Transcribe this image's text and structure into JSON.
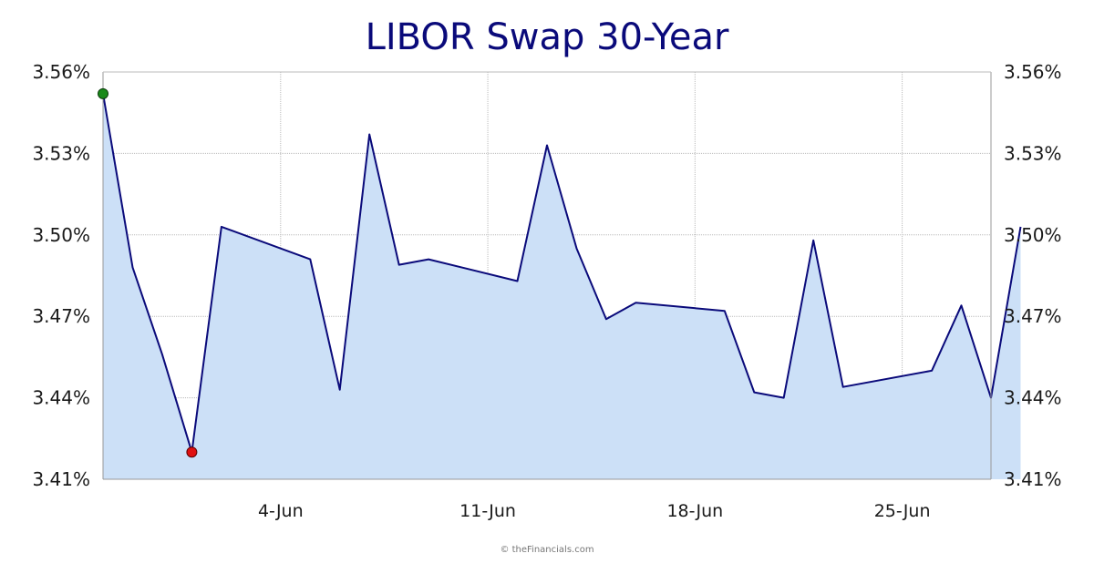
{
  "chart_data": {
    "type": "area",
    "title": "LIBOR Swap 30-Year",
    "xlabel": "",
    "ylabel": "",
    "ylim": [
      3.41,
      3.56
    ],
    "y_ticks": [
      3.41,
      3.44,
      3.47,
      3.5,
      3.53,
      3.56
    ],
    "y_tick_labels": [
      "3.41%",
      "3.44%",
      "3.47%",
      "3.50%",
      "3.53%",
      "3.56%"
    ],
    "xlim": [
      "2018-05-29",
      "2018-06-28"
    ],
    "x_ticks": [
      "2018-06-04",
      "2018-06-11",
      "2018-06-18",
      "2018-06-25"
    ],
    "x_tick_labels": [
      "4-Jun",
      "11-Jun",
      "18-Jun",
      "25-Jun"
    ],
    "grid": true,
    "dual_y_axis": true,
    "series": [
      {
        "x": [
          "2018-05-29",
          "2018-05-30",
          "2018-05-31",
          "2018-06-01",
          "2018-06-02",
          "2018-06-05",
          "2018-06-06",
          "2018-06-07",
          "2018-06-08",
          "2018-06-09",
          "2018-06-12",
          "2018-06-13",
          "2018-06-14",
          "2018-06-15",
          "2018-06-16",
          "2018-06-19",
          "2018-06-20",
          "2018-06-21",
          "2018-06-22",
          "2018-06-23",
          "2018-06-26",
          "2018-06-27",
          "2018-06-28",
          "2018-06-29"
        ],
        "values": [
          3.552,
          3.488,
          3.456,
          3.42,
          3.503,
          3.491,
          3.443,
          3.537,
          3.489,
          3.491,
          3.483,
          3.533,
          3.495,
          3.469,
          3.475,
          3.472,
          3.442,
          3.44,
          3.498,
          3.444,
          3.45,
          3.474,
          3.44,
          3.503
        ]
      }
    ],
    "markers": {
      "high": 3.552,
      "low": 3.42
    },
    "colors": {
      "line": "#0a0a7a",
      "fill": "#cce0f7",
      "high_marker": "#1a8a1a",
      "low_marker": "#e01010",
      "grid": "#bbbbbb",
      "title": "#0a0a7a"
    }
  },
  "credit": "© theFinancials.com"
}
